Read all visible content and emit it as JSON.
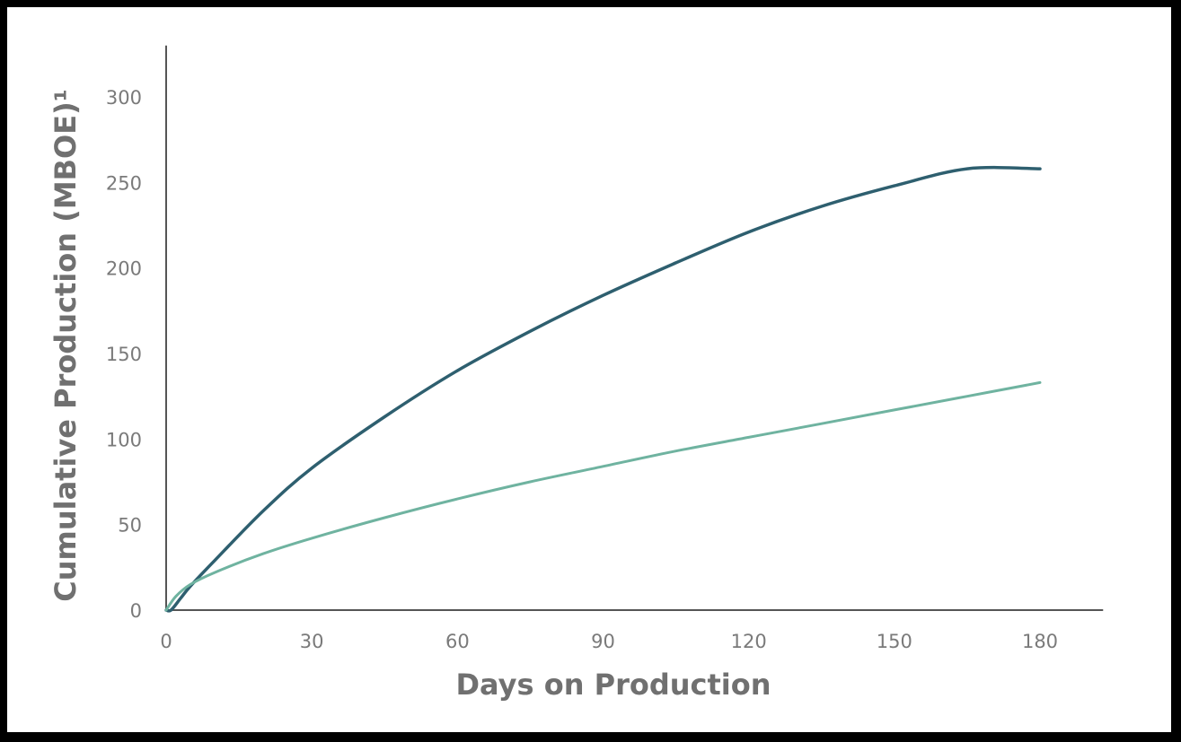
{
  "chart_data": {
    "type": "line",
    "title": "",
    "xlabel": "Days on Production",
    "ylabel": "Cumulative Production (MBOE)¹",
    "xlim": [
      0,
      193
    ],
    "ylim": [
      0,
      330
    ],
    "x_ticks": [
      "0",
      "30",
      "60",
      "90",
      "120",
      "150",
      "180"
    ],
    "y_ticks": [
      "0",
      "50",
      "100",
      "150",
      "200",
      "250",
      "300"
    ],
    "grid": false,
    "legend": "none",
    "series": [
      {
        "color": "#2e5f6f",
        "x": [
          0,
          1,
          3,
          5,
          10,
          20,
          30,
          45,
          60,
          75,
          90,
          105,
          120,
          135,
          150,
          165,
          180
        ],
        "y": [
          0,
          0,
          7,
          14,
          29,
          58,
          83,
          113,
          140,
          163,
          184,
          203,
          221,
          236,
          248,
          258,
          258
        ]
      },
      {
        "color": "#6fb3a0",
        "x": [
          0,
          2,
          5,
          10,
          20,
          30,
          45,
          60,
          75,
          90,
          105,
          120,
          135,
          150,
          165,
          180
        ],
        "y": [
          0,
          8,
          15,
          22,
          33,
          42,
          54,
          65,
          75,
          84,
          93,
          101,
          109,
          117,
          125,
          133
        ]
      }
    ]
  }
}
